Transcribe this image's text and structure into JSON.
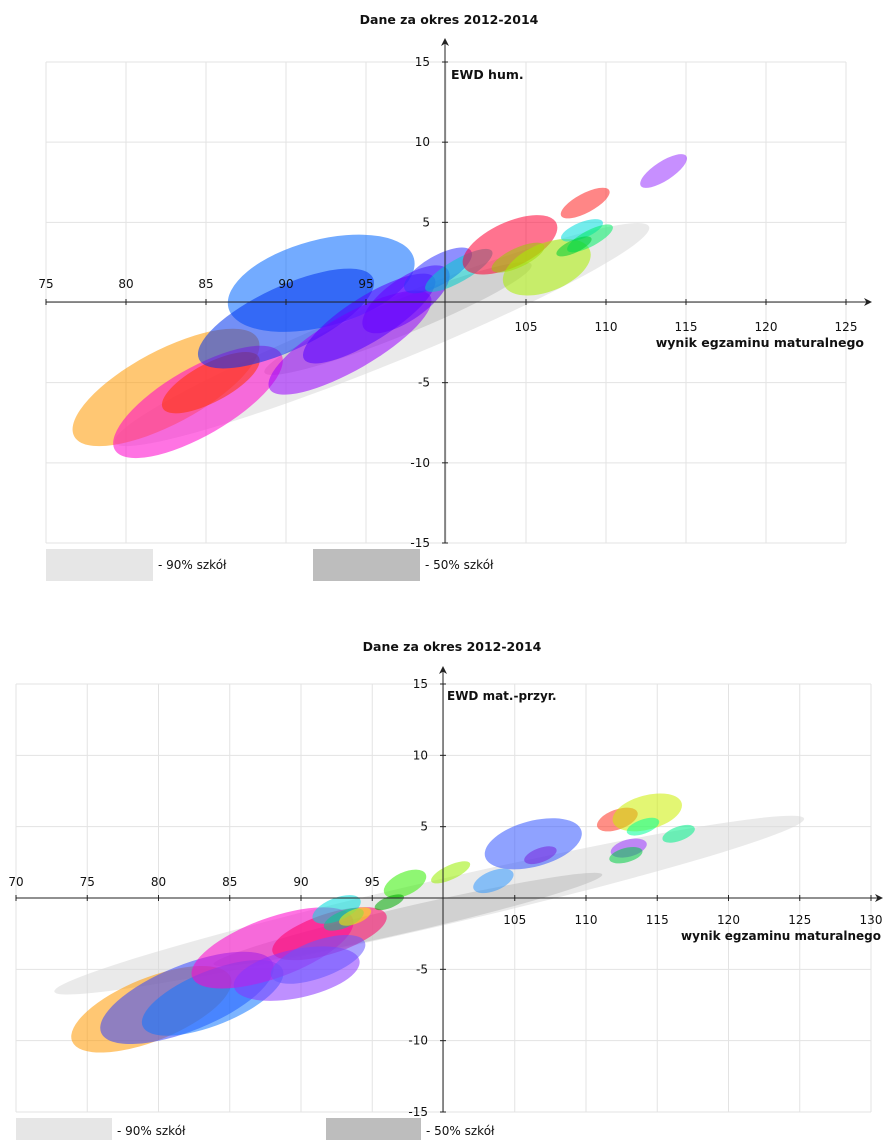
{
  "chart_data": [
    {
      "type": "scatter",
      "title": "Dane za okres 2012-2014",
      "xlabel": "wynik egzaminu maturalnego",
      "ylabel": "EWD hum.",
      "xlim": [
        75,
        125
      ],
      "ylim": [
        -15,
        15
      ],
      "x_ticks": [
        75,
        80,
        85,
        90,
        95,
        105,
        110,
        115,
        120,
        125
      ],
      "y_ticks": [
        15,
        10,
        5,
        -5,
        -10,
        -15
      ],
      "grid": true,
      "legend": [
        {
          "label": "- 90% szkół",
          "color": "#e6e6e6"
        },
        {
          "label": "- 50% szkół",
          "color": "#bdbdbd"
        }
      ],
      "bands": [
        {
          "name": "90%",
          "color": "#d9d9d9",
          "opacity": 0.55,
          "cx": 96,
          "cy": -2,
          "rx": 18,
          "ry": 1.9,
          "angle": 22
        },
        {
          "name": "50%",
          "color": "#b3b3b3",
          "opacity": 0.45,
          "cx": 97,
          "cy": -1,
          "rx": 9,
          "ry": 1.1,
          "angle": 22
        }
      ],
      "ellipses": [
        {
          "color": "#ff9900",
          "cx": 82.5,
          "cy": -5.3,
          "rx": 6.5,
          "ry": 2.3,
          "angle": 28
        },
        {
          "color": "#ff00cc",
          "cx": 84.5,
          "cy": -6.2,
          "rx": 6.0,
          "ry": 2.1,
          "angle": 30
        },
        {
          "color": "#ff3300",
          "cx": 85.3,
          "cy": -5.0,
          "rx": 3.4,
          "ry": 1.2,
          "angle": 28
        },
        {
          "color": "#0066ff",
          "cx": 92.2,
          "cy": 1.2,
          "rx": 6.0,
          "ry": 2.7,
          "angle": 15
        },
        {
          "color": "#0033ee",
          "cx": 90.0,
          "cy": -1.0,
          "rx": 6.0,
          "ry": 2.0,
          "angle": 25
        },
        {
          "color": "#9900ff",
          "cx": 94.0,
          "cy": -2.5,
          "rx": 5.8,
          "ry": 1.7,
          "angle": 30
        },
        {
          "color": "#5500ff",
          "cx": 95.2,
          "cy": -1.0,
          "rx": 4.8,
          "ry": 1.4,
          "angle": 32
        },
        {
          "color": "#6600ff",
          "cx": 97.5,
          "cy": 0.2,
          "rx": 3.2,
          "ry": 1.3,
          "angle": 35
        },
        {
          "color": "#3333ff",
          "cx": 99.5,
          "cy": 2.0,
          "rx": 2.4,
          "ry": 0.9,
          "angle": 30
        },
        {
          "color": "#00cccc",
          "cx": 100.8,
          "cy": 2.0,
          "rx": 2.4,
          "ry": 0.7,
          "angle": 30
        },
        {
          "color": "#ff0033",
          "cx": 104.0,
          "cy": 3.6,
          "rx": 3.2,
          "ry": 1.4,
          "angle": 25
        },
        {
          "color": "#99cc00",
          "cx": 104.5,
          "cy": 2.8,
          "rx": 1.8,
          "ry": 0.6,
          "angle": 25
        },
        {
          "color": "#aaee00",
          "cx": 106.3,
          "cy": 2.2,
          "rx": 2.9,
          "ry": 1.5,
          "angle": 22
        },
        {
          "color": "#ff2222",
          "cx": 108.7,
          "cy": 6.2,
          "rx": 1.7,
          "ry": 0.6,
          "angle": 28
        },
        {
          "color": "#00dddd",
          "cx": 108.5,
          "cy": 4.5,
          "rx": 1.4,
          "ry": 0.5,
          "angle": 22
        },
        {
          "color": "#00ee66",
          "cx": 109.0,
          "cy": 4.0,
          "rx": 1.6,
          "ry": 0.5,
          "angle": 28
        },
        {
          "color": "#00cc33",
          "cx": 108.0,
          "cy": 3.5,
          "rx": 1.2,
          "ry": 0.4,
          "angle": 25
        },
        {
          "color": "#9933ff",
          "cx": 113.6,
          "cy": 8.2,
          "rx": 1.7,
          "ry": 0.6,
          "angle": 33
        }
      ]
    },
    {
      "type": "scatter",
      "title": "Dane za okres 2012-2014",
      "xlabel": "wynik egzaminu maturalnego",
      "ylabel": "EWD mat.-przyr.",
      "xlim": [
        70,
        130
      ],
      "ylim": [
        -15,
        15
      ],
      "x_ticks": [
        70,
        75,
        80,
        85,
        90,
        95,
        105,
        110,
        115,
        120,
        125,
        130
      ],
      "y_ticks": [
        15,
        10,
        5,
        -5,
        -10,
        -15
      ],
      "grid": true,
      "legend": [
        {
          "label": "- 90% szkół",
          "color": "#e6e6e6"
        },
        {
          "label": "- 50% szkół",
          "color": "#bdbdbd"
        }
      ],
      "bands": [
        {
          "name": "90%",
          "color": "#d9d9d9",
          "opacity": 0.55,
          "cx": 99.0,
          "cy": -0.5,
          "rx": 27,
          "ry": 1.6,
          "angle": 13
        },
        {
          "name": "50%",
          "color": "#b3b3b3",
          "opacity": 0.45,
          "cx": 97.5,
          "cy": -1.5,
          "rx": 14,
          "ry": 0.9,
          "angle": 13
        }
      ],
      "ellipses": [
        {
          "color": "#ff9900",
          "cx": 79.5,
          "cy": -7.8,
          "rx": 6.0,
          "ry": 2.2,
          "angle": 22
        },
        {
          "color": "#3344ff",
          "cx": 82.0,
          "cy": -7.0,
          "rx": 6.5,
          "ry": 2.3,
          "angle": 22
        },
        {
          "color": "#1177ff",
          "cx": 83.8,
          "cy": -7.0,
          "rx": 5.3,
          "ry": 1.9,
          "angle": 22
        },
        {
          "color": "#ff00cc",
          "cx": 88.0,
          "cy": -3.5,
          "rx": 6.0,
          "ry": 2.1,
          "angle": 20
        },
        {
          "color": "#ff0066",
          "cx": 92.0,
          "cy": -2.5,
          "rx": 4.2,
          "ry": 1.4,
          "angle": 18
        },
        {
          "color": "#8833ff",
          "cx": 89.7,
          "cy": -5.3,
          "rx": 4.5,
          "ry": 1.7,
          "angle": 12
        },
        {
          "color": "#6655ff",
          "cx": 91.2,
          "cy": -4.3,
          "rx": 3.5,
          "ry": 1.3,
          "angle": 20
        },
        {
          "color": "#00dddd",
          "cx": 92.5,
          "cy": -0.8,
          "rx": 1.8,
          "ry": 0.8,
          "angle": 22
        },
        {
          "color": "#00cc88",
          "cx": 93.0,
          "cy": -1.5,
          "rx": 1.5,
          "ry": 0.6,
          "angle": 22
        },
        {
          "color": "#ffee00",
          "cx": 93.8,
          "cy": -1.3,
          "rx": 1.2,
          "ry": 0.5,
          "angle": 22
        },
        {
          "color": "#33ee00",
          "cx": 97.3,
          "cy": 1.0,
          "rx": 1.6,
          "ry": 0.8,
          "angle": 25
        },
        {
          "color": "#00aa00",
          "cx": 96.2,
          "cy": -0.3,
          "rx": 1.1,
          "ry": 0.4,
          "angle": 22
        },
        {
          "color": "#99ee00",
          "cx": 100.5,
          "cy": 1.8,
          "rx": 1.5,
          "ry": 0.5,
          "angle": 25
        },
        {
          "color": "#3399ff",
          "cx": 103.5,
          "cy": 1.2,
          "rx": 1.5,
          "ry": 0.7,
          "angle": 22
        },
        {
          "color": "#3355ff",
          "cx": 106.3,
          "cy": 3.8,
          "rx": 3.5,
          "ry": 1.6,
          "angle": 15
        },
        {
          "color": "#7722dd",
          "cx": 106.8,
          "cy": 3.0,
          "rx": 1.2,
          "ry": 0.5,
          "angle": 20
        },
        {
          "color": "#ff3322",
          "cx": 112.2,
          "cy": 5.5,
          "rx": 1.5,
          "ry": 0.7,
          "angle": 20
        },
        {
          "color": "#ccee00",
          "cx": 114.3,
          "cy": 6.0,
          "rx": 2.5,
          "ry": 1.2,
          "angle": 15
        },
        {
          "color": "#00ff99",
          "cx": 114.0,
          "cy": 5.0,
          "rx": 1.2,
          "ry": 0.5,
          "angle": 20
        },
        {
          "color": "#9933ff",
          "cx": 113.0,
          "cy": 3.5,
          "rx": 1.3,
          "ry": 0.6,
          "angle": 15
        },
        {
          "color": "#00cc44",
          "cx": 112.8,
          "cy": 3.0,
          "rx": 1.2,
          "ry": 0.5,
          "angle": 15
        },
        {
          "color": "#00ee88",
          "cx": 116.5,
          "cy": 4.5,
          "rx": 1.2,
          "ry": 0.5,
          "angle": 20
        }
      ]
    }
  ]
}
